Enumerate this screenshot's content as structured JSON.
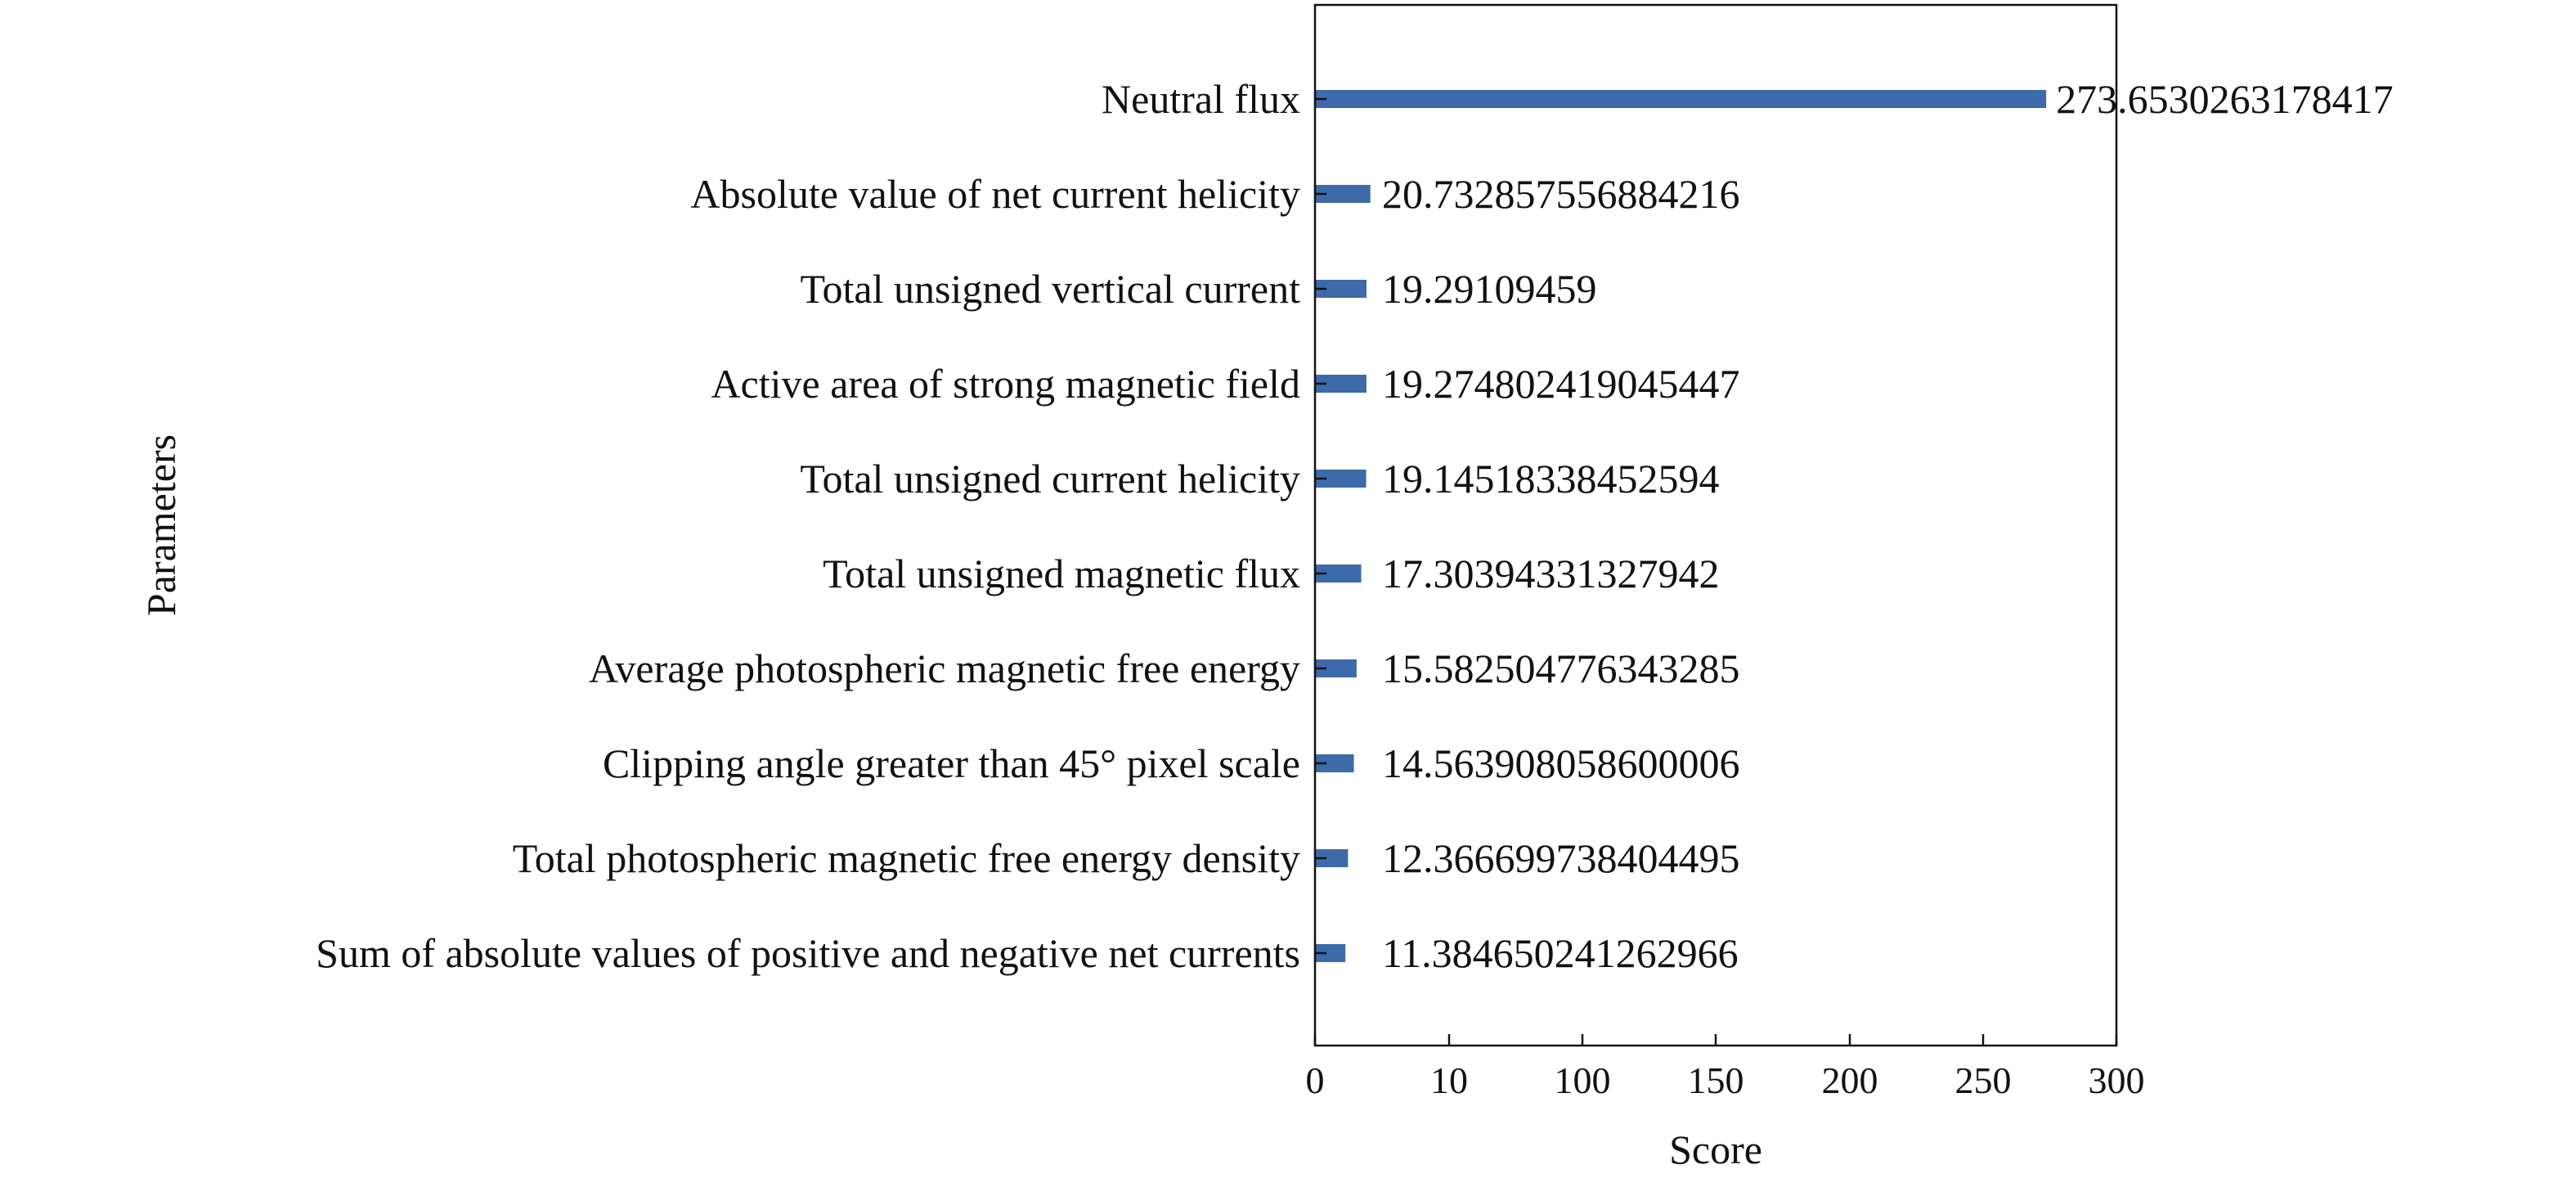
{
  "chart_data": {
    "type": "bar",
    "orientation": "horizontal",
    "xlabel": "Score",
    "ylabel": "Parameters",
    "xlim": [
      0,
      300
    ],
    "x_ticks": [
      0,
      10,
      100,
      150,
      200,
      250,
      300
    ],
    "x_tick_labels": [
      "0",
      "10",
      "100",
      "150",
      "200",
      "250",
      "300"
    ],
    "grid": false,
    "bar_color": "#3d6aa8",
    "categories": [
      "Neutral flux",
      "Absolute value of net current helicity",
      "Total unsigned vertical current",
      "Active area of strong magnetic field",
      "Total unsigned current helicity",
      "Total unsigned magnetic flux",
      "Average photospheric magnetic free energy",
      "Clipping angle greater than 45° pixel scale",
      "Total photospheric magnetic free energy density",
      "Sum of absolute values of positive and negative net currents"
    ],
    "values": [
      273.6530263178417,
      20.732857556884216,
      19.29109459,
      19.274802419045447,
      19.14518338452594,
      17.30394331327942,
      15.582504776343285,
      14.563908058600006,
      12.366699738404495,
      11.384650241262966
    ],
    "data_labels": [
      "273.6530263178417",
      "20.732857556884216",
      "19.29109459",
      "19.274802419045447",
      "19.14518338452594",
      "17.30394331327942",
      "15.582504776343285",
      "14.563908058600006",
      "12.366699738404495",
      "11.384650241262966"
    ]
  }
}
